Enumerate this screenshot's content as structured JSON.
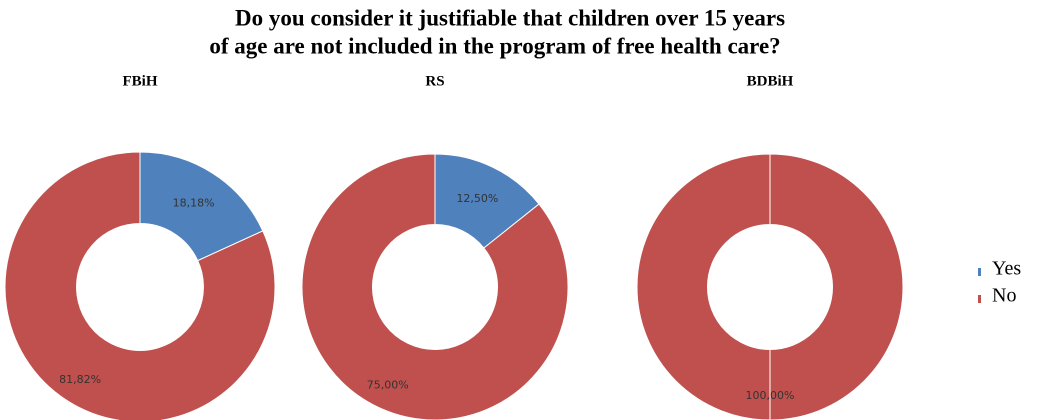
{
  "title_lines": [
    "Do you consider it justifiable that children over 15 years",
    "of age are not included in the program of free health care?"
  ],
  "chart_data": [
    {
      "type": "pie",
      "donut": true,
      "title": "FBiH",
      "categories": [
        "Yes",
        "No"
      ],
      "values": [
        18.18,
        81.82
      ],
      "value_labels": [
        "18,18%",
        "81,82%"
      ],
      "colors": [
        "#4f81bd",
        "#c0504d"
      ]
    },
    {
      "type": "pie",
      "donut": true,
      "title": "RS",
      "categories": [
        "Yes",
        "No"
      ],
      "values": [
        12.5,
        75
      ],
      "value_labels": [
        "12,50%",
        "75,00%"
      ],
      "colors": [
        "#4f81bd",
        "#c0504d"
      ]
    },
    {
      "type": "pie",
      "donut": true,
      "title": "BDBiH",
      "categories": [
        "Yes",
        "No"
      ],
      "values": [
        0,
        100
      ],
      "value_labels": [
        null,
        "100,00%"
      ],
      "colors": [
        "#4f81bd",
        "#c0504d"
      ]
    }
  ],
  "legend_position": "right"
}
